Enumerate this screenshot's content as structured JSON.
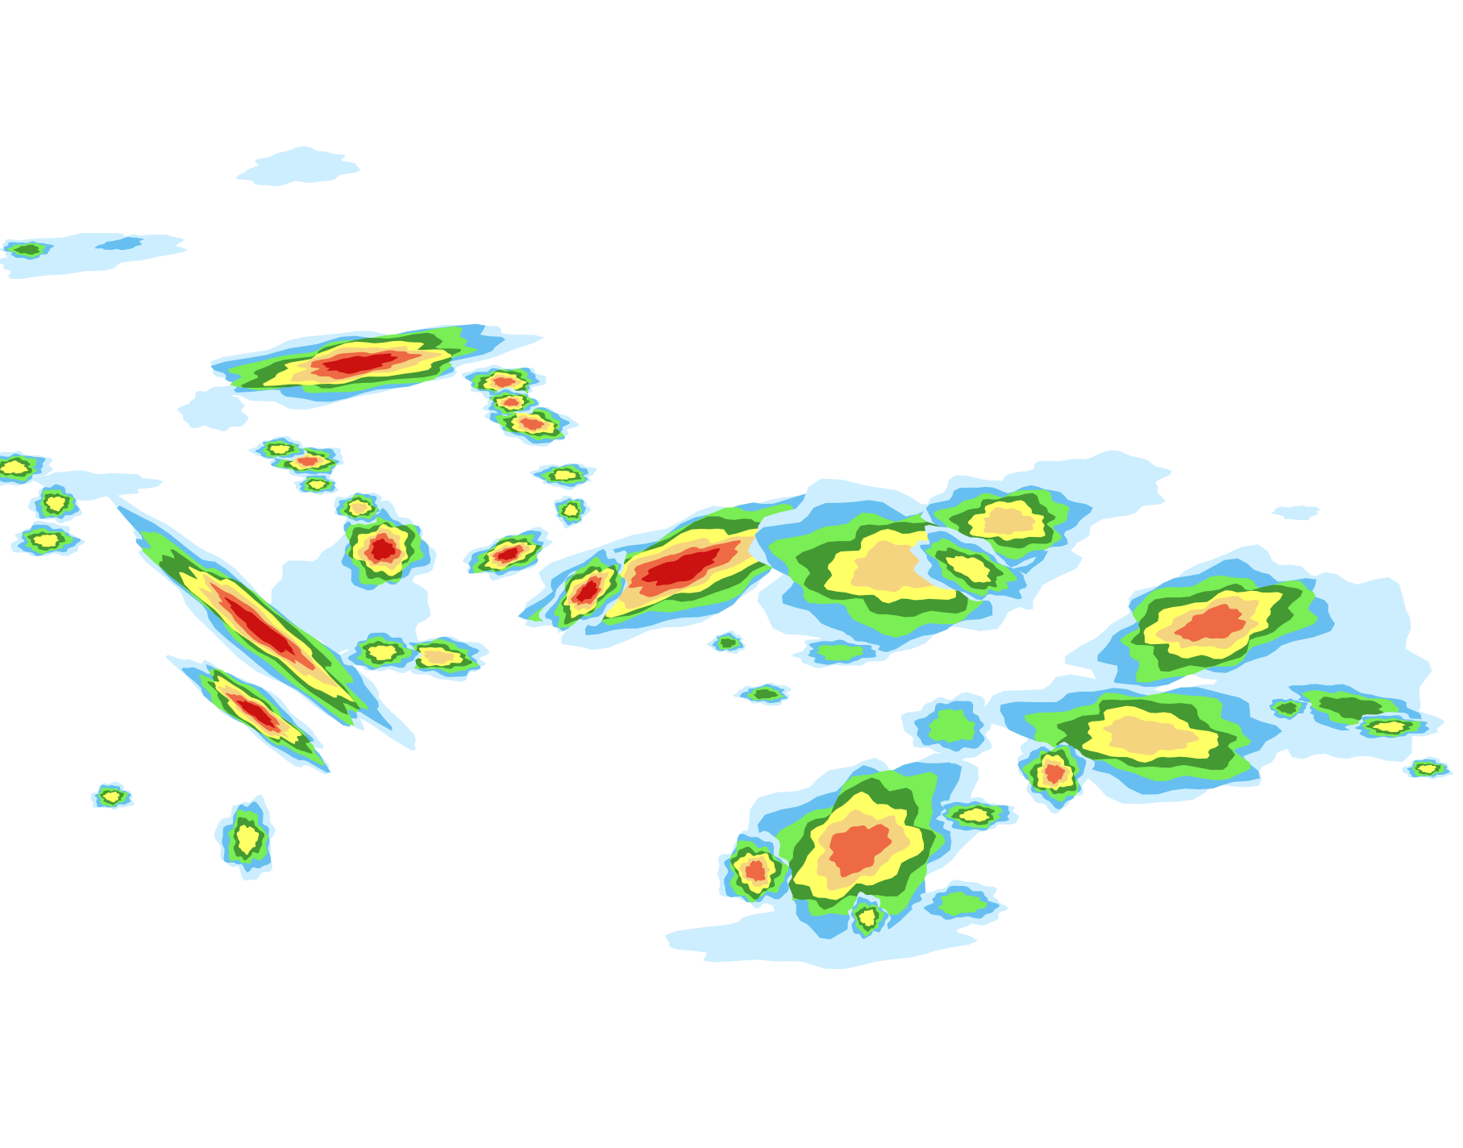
{
  "map": {
    "type": "precipitation-intensity-contours",
    "background_color": "#ffffff",
    "level_colors": [
      "#cdeeff",
      "#66bff0",
      "#7aee55",
      "#449933",
      "#ffff66",
      "#f5d47f",
      "#ee6a44",
      "#cc1111"
    ]
  }
}
